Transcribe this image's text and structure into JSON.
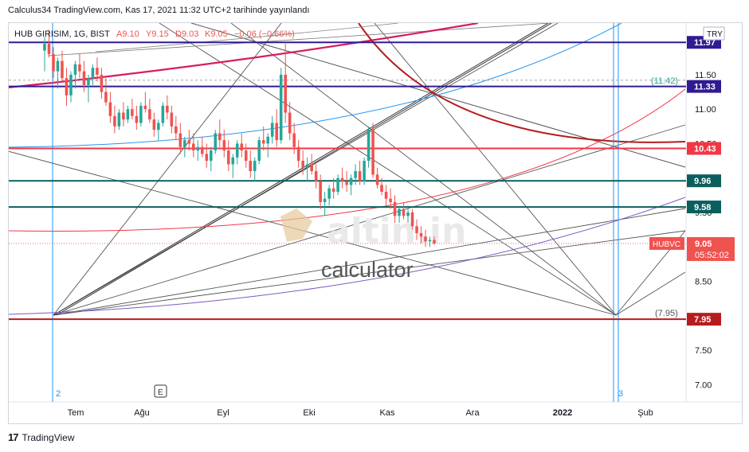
{
  "publish_line": "Calculus34 TradingView.com, Kas 17, 2021 11:32 UTC+2 tarihinde yayınlandı",
  "footer": {
    "brand": "TradingView",
    "logo_icon": "tradingview-logo-icon"
  },
  "currency_badge": "TRY",
  "chart_data": {
    "type": "candlestick",
    "symbol_legend": "HUB GIRISIM, 1G, BIST",
    "ohlc_legend": {
      "O": "A9.10",
      "H": "Y9.15",
      "L": "D9.03",
      "C": "K9.05",
      "change": "−0.06 (−0.66%)"
    },
    "x_ticks": [
      "Tem",
      "Ağu",
      "Eyl",
      "Eki",
      "Kas",
      "Ara",
      "2022",
      "Şub"
    ],
    "y_ticks": [
      "7.00",
      "7.50",
      "8.50",
      "9.50",
      "10.50",
      "11.00",
      "11.50",
      "12.00"
    ],
    "ylim": [
      6.75,
      12.25
    ],
    "watermark": {
      "brand": "altin.in",
      "sub": "calculator"
    },
    "horizontal_levels": [
      {
        "value": 11.97,
        "label": "11.97",
        "color": "#311b92"
      },
      {
        "value": 11.33,
        "label": "11.33",
        "color": "#311b92"
      },
      {
        "value": 10.43,
        "label": "10.43",
        "color": "#f23645"
      },
      {
        "value": 9.96,
        "label": "9.96",
        "color": "#0b5e5e"
      },
      {
        "value": 9.58,
        "label": "9.58",
        "color": "#0b5e5e"
      },
      {
        "value": 7.95,
        "label": "7.95",
        "color": "#b71c1c"
      }
    ],
    "price_labels": [
      {
        "value": 11.42,
        "label": "(11.42)"
      },
      {
        "value": 7.95,
        "label": "(7.95)"
      }
    ],
    "last_price": {
      "value": 9.05,
      "label": "9.05",
      "countdown": "05:52:02",
      "ticker": "HUBVC",
      "color": "#ef5350"
    },
    "vertical_markers": [
      {
        "label": "2"
      },
      {
        "label": "3"
      }
    ],
    "event_marker": "E",
    "candles": [
      [
        11.85,
        12.05,
        11.55,
        11.95
      ],
      [
        11.95,
        12.15,
        11.75,
        11.8
      ],
      [
        11.8,
        11.9,
        11.45,
        11.55
      ],
      [
        11.55,
        11.75,
        11.3,
        11.7
      ],
      [
        11.7,
        11.85,
        11.4,
        11.45
      ],
      [
        11.45,
        11.6,
        11.05,
        11.2
      ],
      [
        11.2,
        11.55,
        11.1,
        11.5
      ],
      [
        11.5,
        11.7,
        11.3,
        11.65
      ],
      [
        11.65,
        11.8,
        11.45,
        11.55
      ],
      [
        11.55,
        11.7,
        11.25,
        11.35
      ],
      [
        11.35,
        11.5,
        11.1,
        11.45
      ],
      [
        11.45,
        11.65,
        11.35,
        11.6
      ],
      [
        11.6,
        11.75,
        11.4,
        11.5
      ],
      [
        11.5,
        11.6,
        11.15,
        11.25
      ],
      [
        11.25,
        11.45,
        11.05,
        11.1
      ],
      [
        11.1,
        11.25,
        10.8,
        10.9
      ],
      [
        10.9,
        11.05,
        10.65,
        10.75
      ],
      [
        10.75,
        11.0,
        10.7,
        10.95
      ],
      [
        10.95,
        11.1,
        10.75,
        10.85
      ],
      [
        10.85,
        11.05,
        10.8,
        11.0
      ],
      [
        11.0,
        11.15,
        10.85,
        10.9
      ],
      [
        10.9,
        11.05,
        10.7,
        10.8
      ],
      [
        10.8,
        11.1,
        10.75,
        11.05
      ],
      [
        11.05,
        11.25,
        10.95,
        11.0
      ],
      [
        11.0,
        11.15,
        10.8,
        10.85
      ],
      [
        10.85,
        10.95,
        10.6,
        10.7
      ],
      [
        10.7,
        10.85,
        10.55,
        10.8
      ],
      [
        10.8,
        11.1,
        10.75,
        11.05
      ],
      [
        11.05,
        11.2,
        10.85,
        10.95
      ],
      [
        10.95,
        11.05,
        10.65,
        10.75
      ],
      [
        10.75,
        10.9,
        10.55,
        10.65
      ],
      [
        10.65,
        10.8,
        10.35,
        10.45
      ],
      [
        10.45,
        10.6,
        10.3,
        10.55
      ],
      [
        10.55,
        10.7,
        10.4,
        10.5
      ],
      [
        10.5,
        10.65,
        10.3,
        10.4
      ],
      [
        10.4,
        10.55,
        10.25,
        10.45
      ],
      [
        10.45,
        10.6,
        10.3,
        10.35
      ],
      [
        10.35,
        10.5,
        10.15,
        10.25
      ],
      [
        10.25,
        10.45,
        10.1,
        10.4
      ],
      [
        10.4,
        10.7,
        10.35,
        10.65
      ],
      [
        10.65,
        10.85,
        10.45,
        10.55
      ],
      [
        10.55,
        10.7,
        10.3,
        10.4
      ],
      [
        10.4,
        10.55,
        10.1,
        10.2
      ],
      [
        10.2,
        10.35,
        10.0,
        10.3
      ],
      [
        10.3,
        10.55,
        10.2,
        10.5
      ],
      [
        10.5,
        10.65,
        10.3,
        10.4
      ],
      [
        10.4,
        10.5,
        10.15,
        10.25
      ],
      [
        10.25,
        10.4,
        10.0,
        10.1
      ],
      [
        10.1,
        10.3,
        9.95,
        10.25
      ],
      [
        10.25,
        10.6,
        10.2,
        10.55
      ],
      [
        10.55,
        10.75,
        10.4,
        10.5
      ],
      [
        10.5,
        10.65,
        10.3,
        10.6
      ],
      [
        10.6,
        10.9,
        10.5,
        10.8
      ],
      [
        10.8,
        11.0,
        10.45,
        10.55
      ],
      [
        10.55,
        11.6,
        10.5,
        11.5
      ],
      [
        11.5,
        11.95,
        10.8,
        10.95
      ],
      [
        10.95,
        11.1,
        10.55,
        10.65
      ],
      [
        10.65,
        10.8,
        10.35,
        10.45
      ],
      [
        10.45,
        10.55,
        10.15,
        10.25
      ],
      [
        10.25,
        10.4,
        10.05,
        10.15
      ],
      [
        10.15,
        10.3,
        9.95,
        10.2
      ],
      [
        10.2,
        10.35,
        10.05,
        10.1
      ],
      [
        10.1,
        10.2,
        9.85,
        9.95
      ],
      [
        9.95,
        10.05,
        9.55,
        9.65
      ],
      [
        9.65,
        9.8,
        9.45,
        9.7
      ],
      [
        9.7,
        9.9,
        9.6,
        9.85
      ],
      [
        9.85,
        10.0,
        9.7,
        9.8
      ],
      [
        9.8,
        10.05,
        9.75,
        10.0
      ],
      [
        10.0,
        10.15,
        9.85,
        9.95
      ],
      [
        9.95,
        10.1,
        9.8,
        9.9
      ],
      [
        9.9,
        10.05,
        9.75,
        10.0
      ],
      [
        10.0,
        10.2,
        9.9,
        10.1
      ],
      [
        10.1,
        10.25,
        9.9,
        9.95
      ],
      [
        9.95,
        10.3,
        9.9,
        10.25
      ],
      [
        10.25,
        10.75,
        10.15,
        10.7
      ],
      [
        10.7,
        10.8,
        10.0,
        10.05
      ],
      [
        10.05,
        10.15,
        9.85,
        9.9
      ],
      [
        9.9,
        10.0,
        9.75,
        9.8
      ],
      [
        9.8,
        9.9,
        9.6,
        9.7
      ],
      [
        9.7,
        9.85,
        9.55,
        9.65
      ],
      [
        9.65,
        9.75,
        9.35,
        9.45
      ],
      [
        9.45,
        9.6,
        9.35,
        9.55
      ],
      [
        9.55,
        9.65,
        9.4,
        9.45
      ],
      [
        9.45,
        9.6,
        9.35,
        9.5
      ],
      [
        9.5,
        9.55,
        9.25,
        9.3
      ],
      [
        9.3,
        9.4,
        9.1,
        9.2
      ],
      [
        9.2,
        9.3,
        9.05,
        9.15
      ],
      [
        9.15,
        9.25,
        9.0,
        9.08
      ],
      [
        9.08,
        9.15,
        9.0,
        9.1
      ],
      [
        9.1,
        9.15,
        9.03,
        9.05
      ]
    ]
  }
}
